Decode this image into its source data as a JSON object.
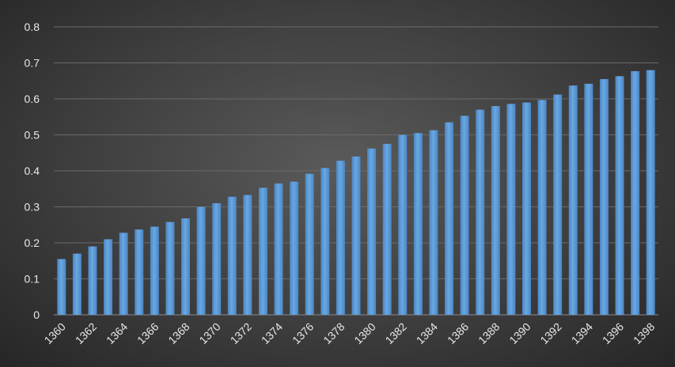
{
  "chart_data": {
    "type": "bar",
    "categories": [
      "1360",
      "1361",
      "1362",
      "1363",
      "1364",
      "1365",
      "1366",
      "1367",
      "1368",
      "1369",
      "1370",
      "1371",
      "1372",
      "1373",
      "1374",
      "1375",
      "1376",
      "1377",
      "1378",
      "1379",
      "1380",
      "1381",
      "1382",
      "1383",
      "1384",
      "1385",
      "1386",
      "1387",
      "1388",
      "1389",
      "1390",
      "1391",
      "1392",
      "1393",
      "1394",
      "1395",
      "1396",
      "1397",
      "1398"
    ],
    "x_tick_labels": [
      "1360",
      "1362",
      "1364",
      "1366",
      "1368",
      "1370",
      "1372",
      "1374",
      "1376",
      "1378",
      "1380",
      "1382",
      "1384",
      "1386",
      "1388",
      "1390",
      "1392",
      "1394",
      "1396",
      "1398"
    ],
    "series": [
      {
        "values": [
          0.155,
          0.17,
          0.19,
          0.21,
          0.228,
          0.237,
          0.245,
          0.258,
          0.268,
          0.3,
          0.31,
          0.328,
          0.333,
          0.353,
          0.365,
          0.37,
          0.392,
          0.408,
          0.428,
          0.44,
          0.462,
          0.475,
          0.5,
          0.505,
          0.513,
          0.535,
          0.553,
          0.57,
          0.58,
          0.586,
          0.59,
          0.597,
          0.612,
          0.637,
          0.642,
          0.655,
          0.663,
          0.677,
          0.68
        ],
        "color": "#5b9bd5"
      }
    ],
    "y_ticks": [
      "0",
      "0.1",
      "0.2",
      "0.3",
      "0.4",
      "0.5",
      "0.6",
      "0.7",
      "0.8"
    ],
    "ylim": [
      0,
      0.8
    ],
    "grid": true,
    "title": "",
    "xlabel": "",
    "ylabel": ""
  }
}
